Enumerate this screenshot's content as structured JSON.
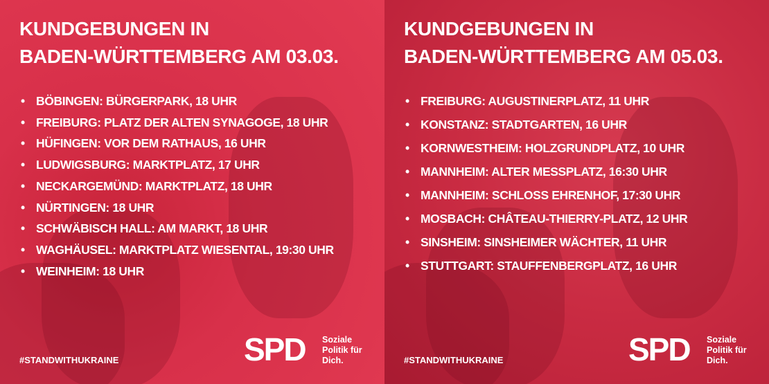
{
  "panels": [
    {
      "title_lines": [
        "KUNDGEBUNGEN IN",
        "BADEN-WÜRTTEMBERG AM 03.03."
      ],
      "items": [
        "BÖBINGEN: BÜRGERPARK, 18 UHR",
        "FREIBURG: PLATZ DER ALTEN SYNAGOGE, 18 UHR",
        "HÜFINGEN: VOR DEM RATHAUS, 16 UHR",
        "LUDWIGSBURG: MARKTPLATZ, 17 UHR",
        "NECKARGEMÜND: MARKTPLATZ, 18 UHR",
        "NÜRTINGEN: 18 UHR",
        "SCHWÄBISCH HALL: AM MARKT, 18 UHR",
        "WAGHÄUSEL: MARKTPLATZ WIESENTAL, 19:30 UHR",
        "WEINHEIM: 18 UHR"
      ],
      "hashtag": "#STANDWITHUKRAINE",
      "logo": "SPD",
      "slogan_lines": [
        "Soziale",
        "Politik für",
        "Dich."
      ]
    },
    {
      "title_lines": [
        "KUNDGEBUNGEN IN",
        "BADEN-WÜRTTEMBERG AM 05.03."
      ],
      "items": [
        "FREIBURG: AUGUSTINERPLATZ, 11 UHR",
        "KONSTANZ: STADTGARTEN, 16 UHR",
        "KORNWESTHEIM: HOLZGRUNDPLATZ, 10 UHR",
        "MANNHEIM: ALTER MESSPLATZ, 16:30 UHR",
        "MANNHEIM: SCHLOSS EHRENHOF, 17:30 UHR",
        "MOSBACH: CHÂTEAU-THIERRY-PLATZ, 12 UHR",
        "SINSHEIM: SINSHEIMER WÄCHTER, 11 UHR",
        "STUTTGART: STAUFFENBERGPLATZ, 16 UHR"
      ],
      "hashtag": "#STANDWITHUKRAINE",
      "logo": "SPD",
      "slogan_lines": [
        "Soziale",
        "Politik für",
        "Dich."
      ]
    }
  ]
}
